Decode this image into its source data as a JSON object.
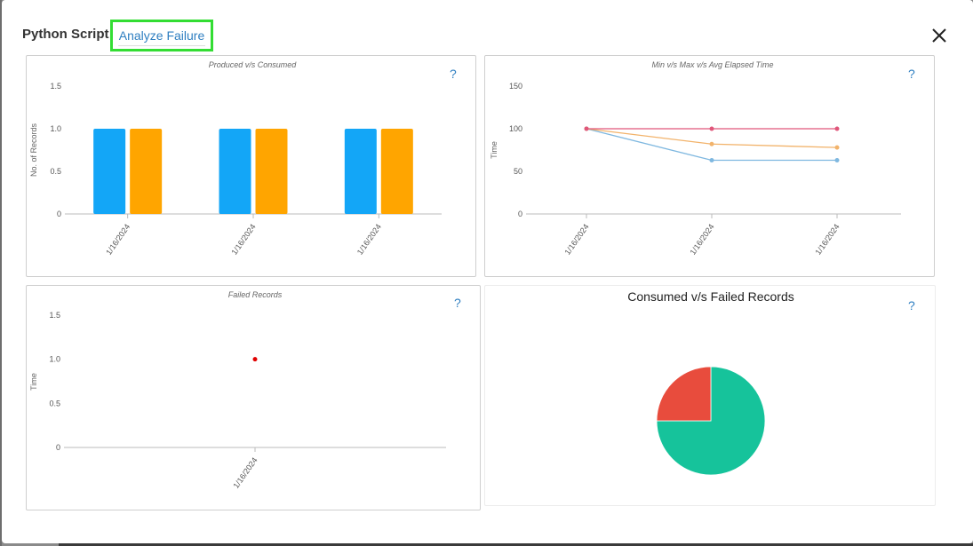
{
  "modal": {
    "title": "Python Script",
    "tab_label": "Analyze Failure",
    "help_label": "?"
  },
  "colors": {
    "produced": "#13a6f7",
    "consumed": "#ffa500",
    "max": "#e0567a",
    "avg": "#f2b36b",
    "min": "#7fb8e0",
    "failed_point": "#e00000",
    "pie_consumed": "#16c39b",
    "pie_failed": "#e84c3d"
  },
  "chart_data": [
    {
      "type": "bar",
      "title": "Produced v/s Consumed",
      "xlabel": "",
      "ylabel": "No. of Records",
      "categories": [
        "1/16/2024",
        "1/16/2024",
        "1/16/2024"
      ],
      "series": [
        {
          "values": [
            1,
            1,
            1
          ]
        },
        {
          "values": [
            1,
            1,
            1
          ]
        }
      ],
      "ylim": [
        0,
        1.5
      ],
      "yticks": [
        "0",
        "0.5",
        "1.0",
        "1.5"
      ]
    },
    {
      "type": "line",
      "title": "Min v/s Max v/s Avg Elapsed Time",
      "xlabel": "",
      "ylabel": "Time",
      "categories": [
        "1/16/2024",
        "1/16/2024",
        "1/16/2024"
      ],
      "series": [
        {
          "values": [
            100,
            100,
            100
          ]
        },
        {
          "values": [
            100,
            82,
            78
          ]
        },
        {
          "values": [
            100,
            63,
            63
          ]
        }
      ],
      "ylim": [
        0,
        150
      ],
      "yticks": [
        "0",
        "50",
        "100",
        "150"
      ]
    },
    {
      "type": "scatter",
      "title": "Failed Records",
      "xlabel": "",
      "ylabel": "Time",
      "categories": [
        "1/16/2024"
      ],
      "values": [
        1
      ],
      "ylim": [
        0,
        1.5
      ],
      "yticks": [
        "0",
        "0.5",
        "1.0",
        "1.5"
      ]
    },
    {
      "type": "pie",
      "title": "Consumed v/s Failed Records",
      "slices": [
        {
          "value": 75
        },
        {
          "value": 25
        }
      ]
    }
  ]
}
